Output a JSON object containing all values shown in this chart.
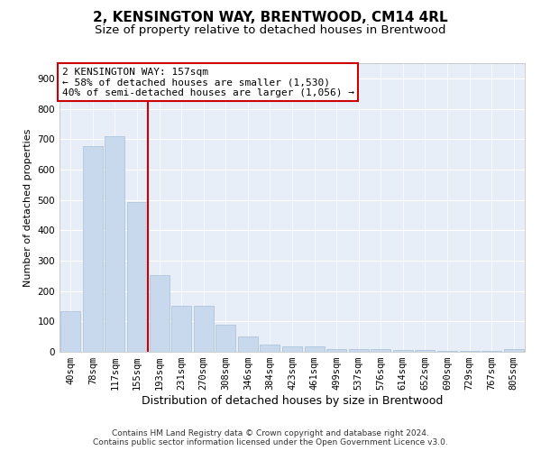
{
  "title": "2, KENSINGTON WAY, BRENTWOOD, CM14 4RL",
  "subtitle": "Size of property relative to detached houses in Brentwood",
  "xlabel": "Distribution of detached houses by size in Brentwood",
  "ylabel": "Number of detached properties",
  "categories": [
    "40sqm",
    "78sqm",
    "117sqm",
    "155sqm",
    "193sqm",
    "231sqm",
    "270sqm",
    "308sqm",
    "346sqm",
    "384sqm",
    "423sqm",
    "461sqm",
    "499sqm",
    "537sqm",
    "576sqm",
    "614sqm",
    "652sqm",
    "690sqm",
    "729sqm",
    "767sqm",
    "805sqm"
  ],
  "bar_heights": [
    135,
    678,
    710,
    493,
    252,
    152,
    152,
    90,
    50,
    25,
    18,
    17,
    10,
    10,
    8,
    5,
    5,
    3,
    2,
    2,
    8
  ],
  "bar_color": "#c8d9ed",
  "bar_edge_color": "#a8c0d8",
  "background_color": "#ffffff",
  "plot_bg_color": "#e8eef7",
  "grid_color": "#ffffff",
  "red_line_x": 3,
  "red_line_color": "#cc0000",
  "ylim": [
    0,
    950
  ],
  "yticks": [
    0,
    100,
    200,
    300,
    400,
    500,
    600,
    700,
    800,
    900
  ],
  "annotation_box_text": "2 KENSINGTON WAY: 157sqm\n← 58% of detached houses are smaller (1,530)\n40% of semi-detached houses are larger (1,056) →",
  "footer_line1": "Contains HM Land Registry data © Crown copyright and database right 2024.",
  "footer_line2": "Contains public sector information licensed under the Open Government Licence v3.0.",
  "title_fontsize": 11,
  "subtitle_fontsize": 9.5,
  "xlabel_fontsize": 9,
  "ylabel_fontsize": 8,
  "tick_fontsize": 7.5,
  "annotation_fontsize": 8,
  "footer_fontsize": 6.5
}
